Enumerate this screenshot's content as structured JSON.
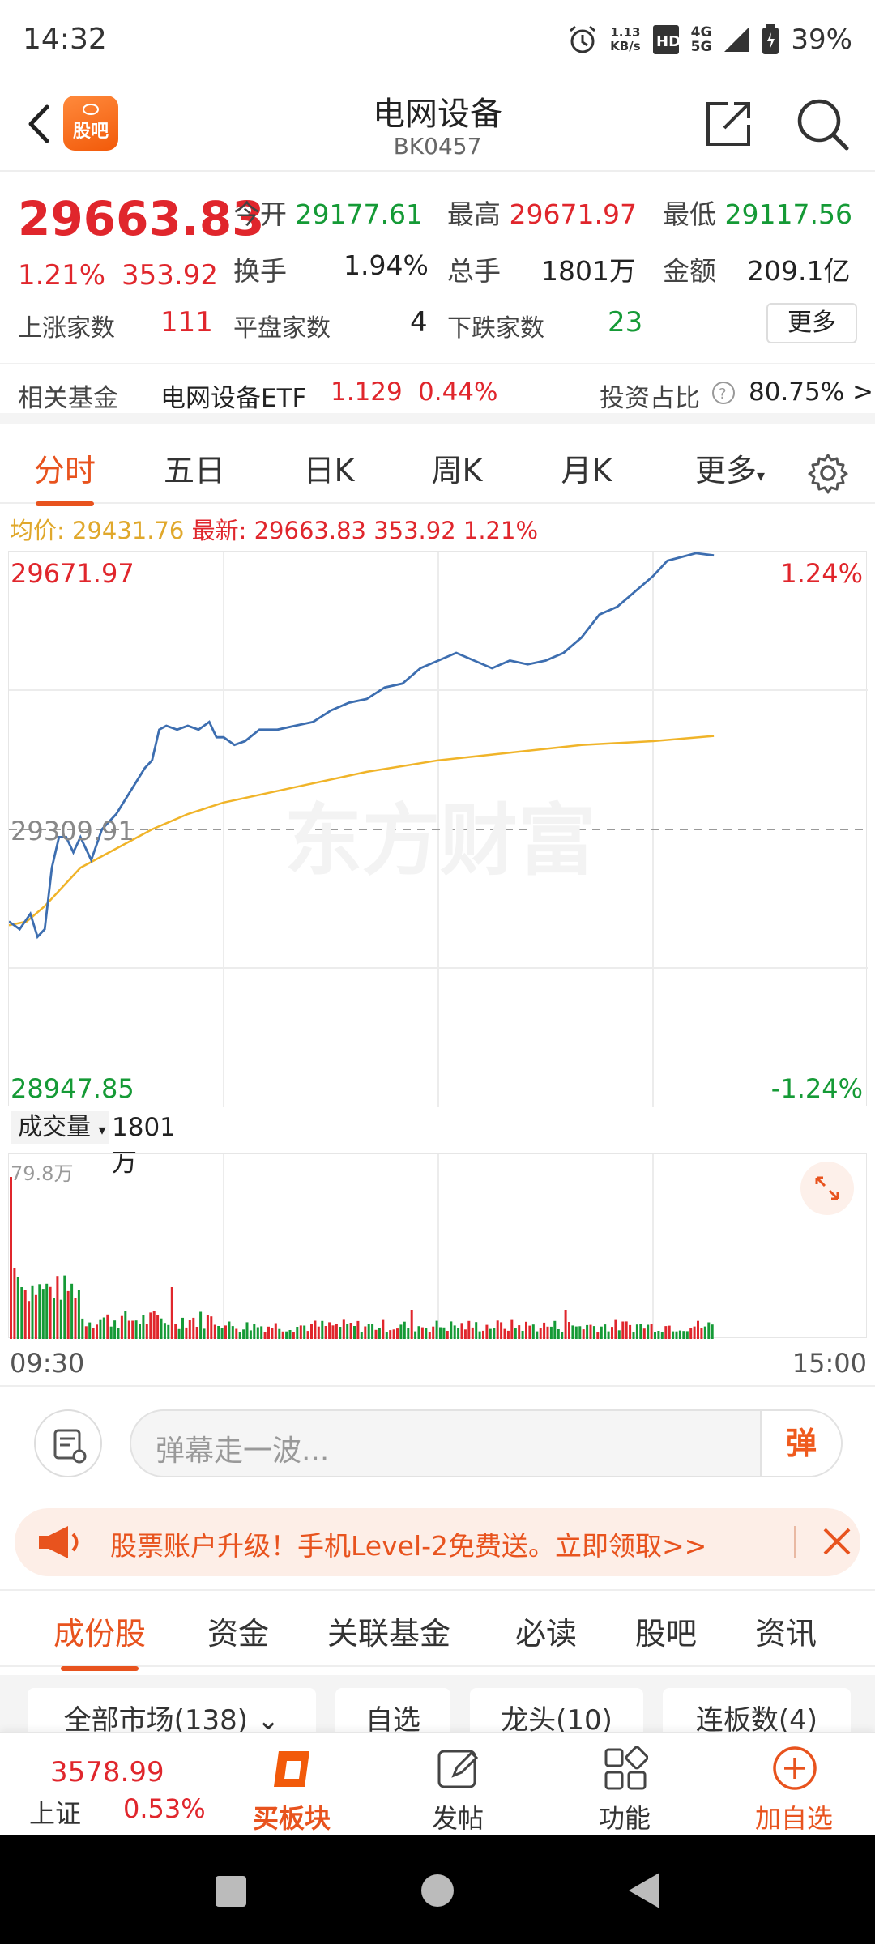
{
  "status": {
    "time": "14:32",
    "net_speed": "1.13",
    "net_unit": "KB/s",
    "sig1": "4G",
    "sig2": "5G",
    "battery": "39%"
  },
  "header": {
    "title": "电网设备",
    "code": "BK0457",
    "logo_text": "股吧"
  },
  "quote": {
    "price": "29663.83",
    "pct": "1.21%",
    "change": "353.92",
    "open_label": "今开",
    "open": "29177.61",
    "high_label": "最高",
    "high": "29671.97",
    "low_label": "最低",
    "low": "29117.56",
    "turnover_label": "换手",
    "turnover": "1.94%",
    "volume_label": "总手",
    "volume": "1801万",
    "amount_label": "金额",
    "amount": "209.1亿",
    "up_label": "上涨家数",
    "up": "111",
    "flat_label": "平盘家数",
    "flat": "4",
    "down_label": "下跌家数",
    "down": "23",
    "more": "更多"
  },
  "fund": {
    "label": "相关基金",
    "name": "电网设备ETF",
    "price": "1.129",
    "pct": "0.44%",
    "ratio_label": "投资占比",
    "ratio": "80.75% >"
  },
  "tabs": [
    "分时",
    "五日",
    "日K",
    "周K",
    "月K",
    "更多"
  ],
  "avg": {
    "label": "均价:",
    "value": "29431.76",
    "latest_label": "最新:",
    "latest": "29663.83",
    "change": "353.92",
    "pct": "1.21%"
  },
  "chart_labels": {
    "top": "29671.97",
    "mid": "29309.91",
    "bottom": "28947.85",
    "top_pct": "1.24%",
    "bottom_pct": "-1.24%",
    "watermark": "东方财富"
  },
  "volume": {
    "selector": "成交量",
    "value": "1801万",
    "max": "79.8万",
    "start": "09:30",
    "end": "15:00"
  },
  "danmu": {
    "placeholder": "弹幕走一波...",
    "button": "弹"
  },
  "promo": {
    "text": "股票账户升级！手机Level-2免费送。立即领取>>"
  },
  "subtabs": [
    "成份股",
    "资金",
    "关联基金",
    "必读",
    "股吧",
    "资讯"
  ],
  "filters": [
    "全部市场(138)",
    "自选",
    "龙头(10)",
    "连板数(4)"
  ],
  "bottom_nav": {
    "index_value": "3578.99",
    "index_name": "上证",
    "index_pct": "0.53%",
    "buy": "买板块",
    "post": "发帖",
    "func": "功能",
    "add": "加自选"
  },
  "colors": {
    "accent": "#e8531e",
    "up": "#e0262c",
    "down": "#159a36",
    "price_line": "#3d6eb0",
    "avg_line": "#f0b429"
  },
  "chart_data": {
    "type": "line",
    "ylim": [
      28947.85,
      29671.97
    ],
    "reference": 29309.91,
    "price_series": [
      [
        0,
        29190
      ],
      [
        3,
        29180
      ],
      [
        6,
        29200
      ],
      [
        8,
        29170
      ],
      [
        10,
        29180
      ],
      [
        12,
        29260
      ],
      [
        14,
        29300
      ],
      [
        16,
        29300
      ],
      [
        18,
        29280
      ],
      [
        20,
        29300
      ],
      [
        23,
        29270
      ],
      [
        26,
        29310
      ],
      [
        30,
        29330
      ],
      [
        34,
        29360
      ],
      [
        38,
        29390
      ],
      [
        40,
        29400
      ],
      [
        42,
        29440
      ],
      [
        44,
        29445
      ],
      [
        47,
        29440
      ],
      [
        50,
        29445
      ],
      [
        53,
        29440
      ],
      [
        56,
        29450
      ],
      [
        58,
        29430
      ],
      [
        60,
        29430
      ],
      [
        63,
        29420
      ],
      [
        66,
        29425
      ],
      [
        70,
        29440
      ],
      [
        75,
        29440
      ],
      [
        80,
        29445
      ],
      [
        85,
        29450
      ],
      [
        90,
        29465
      ],
      [
        95,
        29475
      ],
      [
        100,
        29480
      ],
      [
        105,
        29495
      ],
      [
        110,
        29500
      ],
      [
        115,
        29520
      ],
      [
        120,
        29530
      ],
      [
        125,
        29540
      ],
      [
        130,
        29530
      ],
      [
        135,
        29520
      ],
      [
        140,
        29530
      ],
      [
        145,
        29525
      ],
      [
        150,
        29530
      ],
      [
        155,
        29540
      ],
      [
        160,
        29560
      ],
      [
        165,
        29590
      ],
      [
        170,
        29600
      ],
      [
        175,
        29620
      ],
      [
        180,
        29640
      ],
      [
        184,
        29660
      ],
      [
        188,
        29665
      ],
      [
        192,
        29670
      ],
      [
        197,
        29667
      ]
    ],
    "avg_series": [
      [
        0,
        29185
      ],
      [
        5,
        29190
      ],
      [
        10,
        29210
      ],
      [
        20,
        29260
      ],
      [
        30,
        29285
      ],
      [
        40,
        29310
      ],
      [
        50,
        29330
      ],
      [
        60,
        29345
      ],
      [
        80,
        29365
      ],
      [
        100,
        29385
      ],
      [
        120,
        29400
      ],
      [
        140,
        29410
      ],
      [
        160,
        29420
      ],
      [
        180,
        29425
      ],
      [
        197,
        29431.76
      ]
    ],
    "volume_max": 79.8,
    "volume_unit": "万",
    "x_range": [
      0,
      240
    ]
  }
}
